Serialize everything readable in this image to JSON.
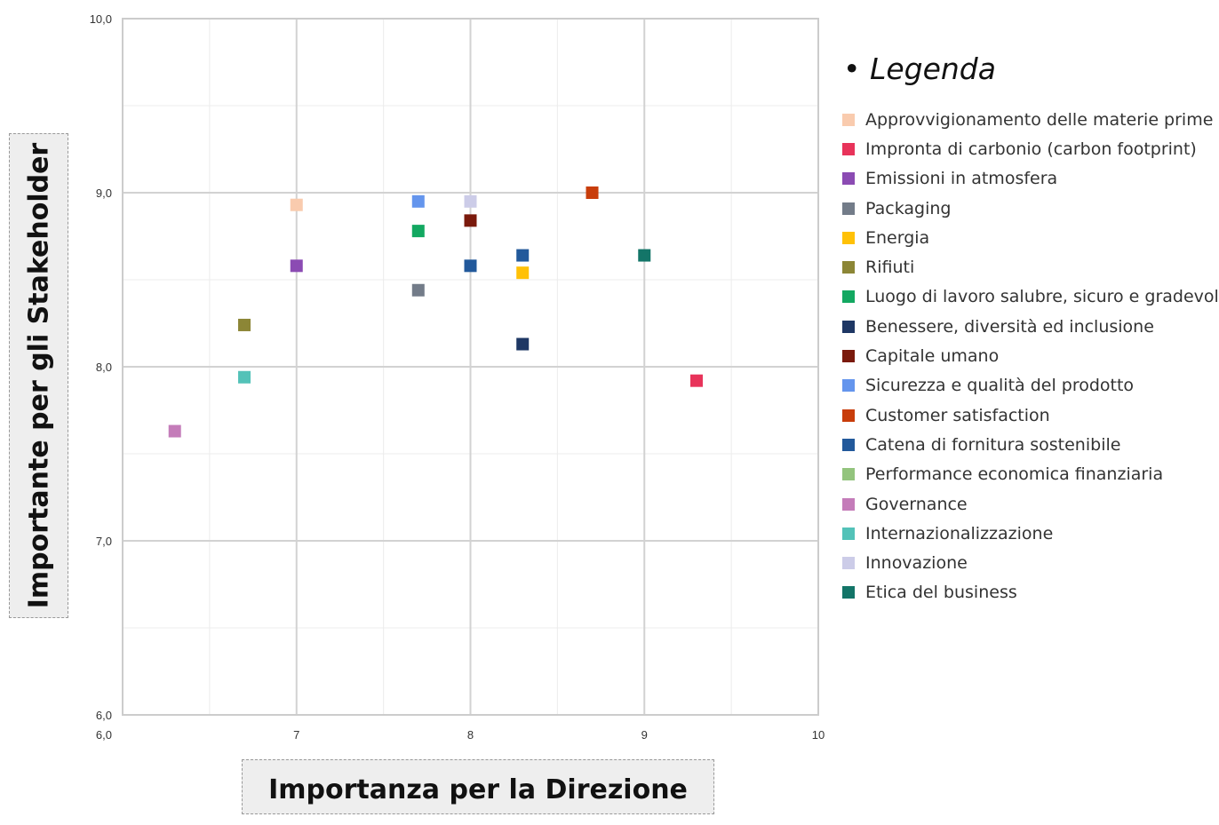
{
  "chart_data": {
    "type": "scatter",
    "xlabel": "Importanza per la Direzione",
    "ylabel": "Importante per gli Stakeholder",
    "xlim": [
      6,
      10
    ],
    "ylim": [
      6,
      10
    ],
    "x_ticks": [
      "6,0",
      "7",
      "8",
      "9",
      "10"
    ],
    "y_ticks": [
      "6,0",
      "7,0",
      "8,0",
      "9,0",
      "10,0"
    ],
    "grid": true,
    "legend_title": "• Legenda",
    "legend_position": "right",
    "series": [
      {
        "name": "Approvvigionamento delle materie prime",
        "color": "#F9CBAE",
        "x": 7.0,
        "y": 8.93
      },
      {
        "name": "Impronta di carbonio (carbon footprint)",
        "color": "#E8335A",
        "x": 9.3,
        "y": 7.92
      },
      {
        "name": "Emissioni in atmosfera",
        "color": "#8B4BB3",
        "x": 7.0,
        "y": 8.58
      },
      {
        "name": "Packaging",
        "color": "#737C89",
        "x": 7.7,
        "y": 8.44
      },
      {
        "name": "Energia",
        "color": "#FFC107",
        "x": 8.3,
        "y": 8.54
      },
      {
        "name": "Rifiuti",
        "color": "#8C8636",
        "x": 6.7,
        "y": 8.24
      },
      {
        "name": "Luogo di lavoro salubre, sicuro e gradevole",
        "color": "#13A861",
        "x": 7.7,
        "y": 8.78
      },
      {
        "name": "Benessere, diversità ed inclusione",
        "color": "#1E3764",
        "x": 8.3,
        "y": 8.13
      },
      {
        "name": "Capitale umano",
        "color": "#7A1A0C",
        "x": 8.0,
        "y": 8.84
      },
      {
        "name": "Sicurezza e qualità del prodotto",
        "color": "#6495ED",
        "x": 7.7,
        "y": 8.95
      },
      {
        "name": "Customer satisfaction",
        "color": "#C83D0B",
        "x": 8.7,
        "y": 9.0
      },
      {
        "name": "Catena di fornitura sostenibile",
        "color": "#22599B",
        "x": [
          8.0,
          8.3
        ],
        "y": [
          8.58,
          8.64
        ]
      },
      {
        "name": "Performance economica finanziaria",
        "color": "#93C47D",
        "x": [],
        "y": []
      },
      {
        "name": "Governance",
        "color": "#C47CB9",
        "x": 6.3,
        "y": 7.63
      },
      {
        "name": "Internazionalizzazione",
        "color": "#53C2B8",
        "x": 6.7,
        "y": 7.94
      },
      {
        "name": "Innovazione",
        "color": "#CCCCE8",
        "x": 8.0,
        "y": 8.95
      },
      {
        "name": "Etica del business",
        "color": "#137568",
        "x": 9.0,
        "y": 8.64
      }
    ]
  }
}
